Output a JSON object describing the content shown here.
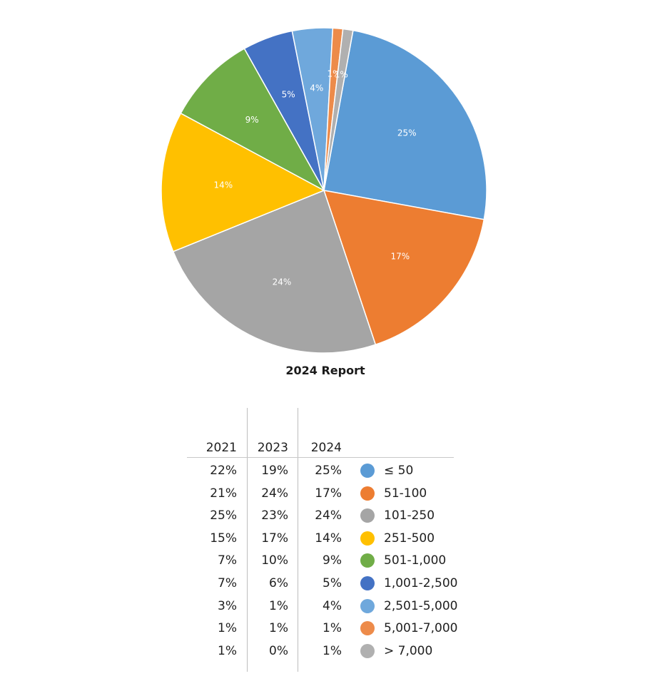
{
  "chart_data": {
    "type": "pie",
    "title": "2024 Report",
    "categories": [
      "≤ 50",
      "51-100",
      "101-250",
      "251-500",
      "501-1,000",
      "1,001-2,500",
      "2,501-5,000",
      "5,001-7,000",
      "> 7,000"
    ],
    "values": [
      25,
      17,
      24,
      14,
      9,
      5,
      4,
      1,
      1
    ],
    "slice_labels": [
      "25%",
      "17%",
      "24%",
      "14%",
      "9%",
      "5%",
      "4%",
      "1%",
      "1%"
    ],
    "colors": [
      "#5B9BD5",
      "#ED7D31",
      "#A5A5A5",
      "#FFC000",
      "#70AD47",
      "#4472C4",
      "#6FA8DC",
      "#ED8B4A",
      "#B0B0B0"
    ],
    "start": "top, clockwise",
    "legend_placement": "bottom table"
  },
  "table": {
    "headers": [
      "2021",
      "2023",
      "2024"
    ],
    "rows": [
      {
        "y2021": "22%",
        "y2023": "19%",
        "y2024": "25%",
        "label": "≤ 50",
        "color": "#5B9BD5"
      },
      {
        "y2021": "21%",
        "y2023": "24%",
        "y2024": "17%",
        "label": "51-100",
        "color": "#ED7D31"
      },
      {
        "y2021": "25%",
        "y2023": "23%",
        "y2024": "24%",
        "label": "101-250",
        "color": "#A5A5A5"
      },
      {
        "y2021": "15%",
        "y2023": "17%",
        "y2024": "14%",
        "label": "251-500",
        "color": "#FFC000"
      },
      {
        "y2021": "7%",
        "y2023": "10%",
        "y2024": "9%",
        "label": "501-1,000",
        "color": "#70AD47"
      },
      {
        "y2021": "7%",
        "y2023": "6%",
        "y2024": "5%",
        "label": "1,001-2,500",
        "color": "#4472C4"
      },
      {
        "y2021": "3%",
        "y2023": "1%",
        "y2024": "4%",
        "label": "2,501-5,000",
        "color": "#6FA8DC"
      },
      {
        "y2021": "1%",
        "y2023": "1%",
        "y2024": "1%",
        "label": "5,001-7,000",
        "color": "#ED8B4A"
      },
      {
        "y2021": "1%",
        "y2023": "0%",
        "y2024": "1%",
        "label": "> 7,000",
        "color": "#B0B0B0"
      }
    ]
  }
}
